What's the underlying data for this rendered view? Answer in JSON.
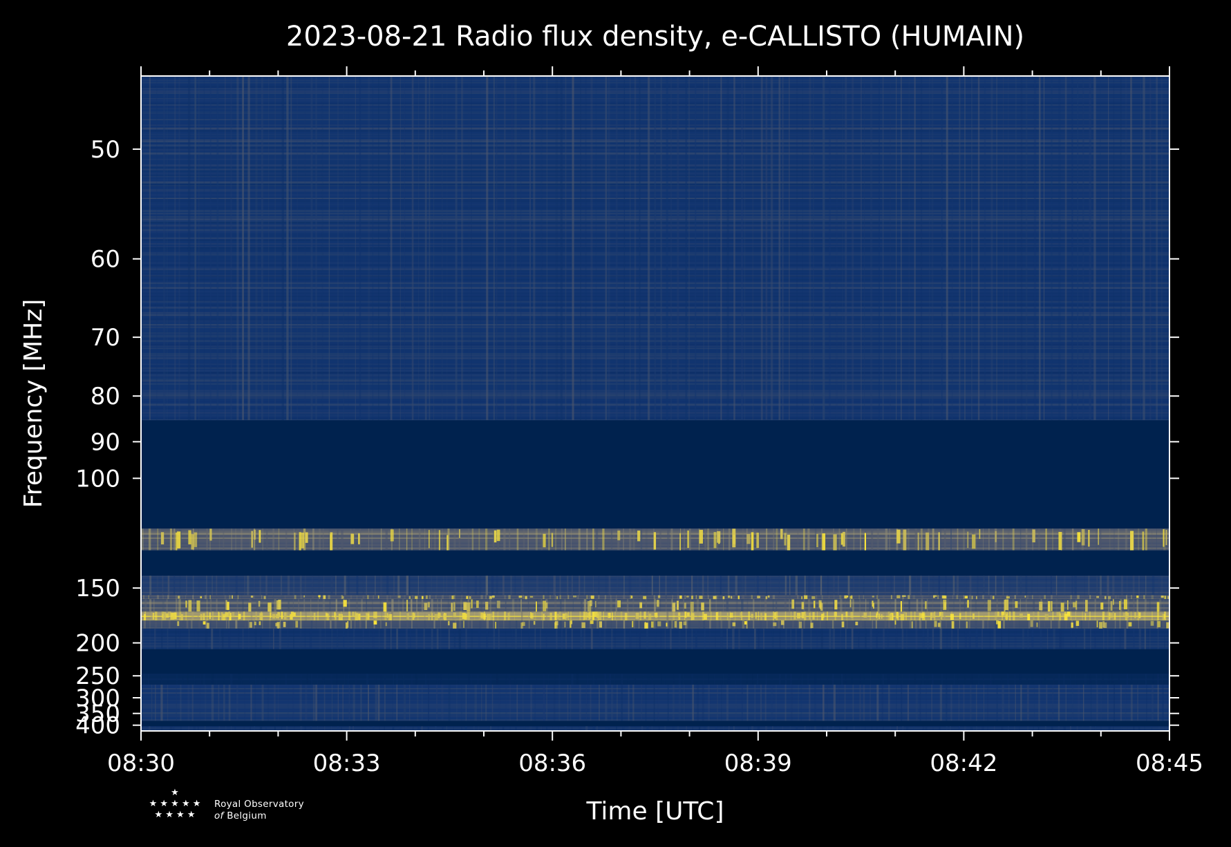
{
  "chart_data": {
    "type": "heatmap",
    "title": "2023-08-21 Radio flux density, e-CALLISTO (HUMAIN)",
    "xlabel": "Time [UTC]",
    "ylabel": "Frequency [MHz]",
    "x_ticks": [
      "08:30",
      "08:33",
      "08:36",
      "08:39",
      "08:42",
      "08:45"
    ],
    "x_range_minutes": [
      0,
      15
    ],
    "y_ticks": [
      50,
      60,
      70,
      80,
      90,
      100,
      150,
      200,
      250,
      300,
      350,
      400
    ],
    "y_scale": "reciprocal",
    "y_range_mhz": [
      45,
      430
    ],
    "colormap": [
      "#00224e",
      "#123570",
      "#575d6d",
      "#a59c74",
      "#fee838"
    ],
    "bands": [
      {
        "f0": 45,
        "f1": 85,
        "level": 0.32
      },
      {
        "f0": 85,
        "f1": 118,
        "level": 0.0
      },
      {
        "f0": 118,
        "f1": 128,
        "level": 0.62
      },
      {
        "f0": 128,
        "f1": 142,
        "level": 0.0
      },
      {
        "f0": 142,
        "f1": 155,
        "level": 0.4
      },
      {
        "f0": 155,
        "f1": 158,
        "level": 0.62
      },
      {
        "f0": 158,
        "f1": 168,
        "level": 0.55
      },
      {
        "f0": 168,
        "f1": 176,
        "level": 0.95
      },
      {
        "f0": 176,
        "f1": 184,
        "level": 0.55
      },
      {
        "f0": 184,
        "f1": 208,
        "level": 0.3
      },
      {
        "f0": 208,
        "f1": 246,
        "level": 0.0
      },
      {
        "f0": 246,
        "f1": 268,
        "level": 0.1
      },
      {
        "f0": 268,
        "f1": 380,
        "level": 0.33
      },
      {
        "f0": 380,
        "f1": 405,
        "level": 0.0
      },
      {
        "f0": 405,
        "f1": 430,
        "level": 0.25
      }
    ]
  },
  "logo": {
    "stars_top": "★",
    "stars_mid": "★ ★ ★ ★ ★",
    "stars_bot": "★ ★ ★ ★",
    "line1": "Royal Observatory",
    "line2_italic": "of",
    "line2_rest": "Belgium"
  }
}
